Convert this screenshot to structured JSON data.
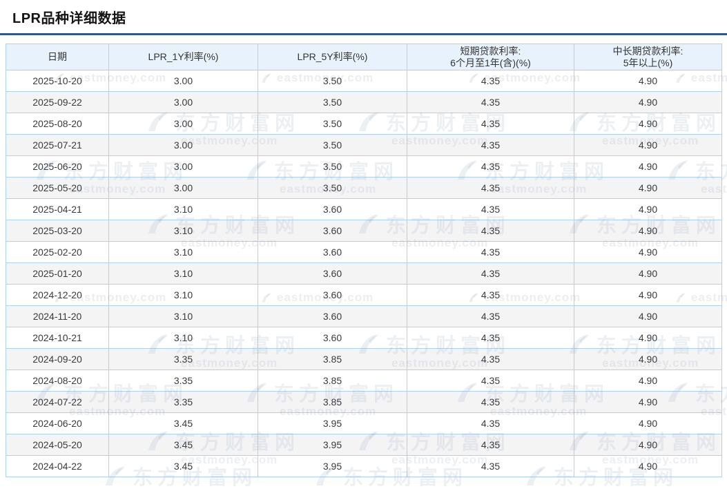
{
  "page": {
    "title": "LPR品种详细数据"
  },
  "table": {
    "headers": [
      "日期",
      "LPR_1Y利率(%)",
      "LPR_5Y利率(%)",
      "短期贷款利率:\n6个月至1年(含)(%)",
      "中长期贷款利率:\n5年以上(%)"
    ],
    "rows": [
      [
        "2025-10-20",
        "3.00",
        "3.50",
        "4.35",
        "4.90"
      ],
      [
        "2025-09-22",
        "3.00",
        "3.50",
        "4.35",
        "4.90"
      ],
      [
        "2025-08-20",
        "3.00",
        "3.50",
        "4.35",
        "4.90"
      ],
      [
        "2025-07-21",
        "3.00",
        "3.50",
        "4.35",
        "4.90"
      ],
      [
        "2025-06-20",
        "3.00",
        "3.50",
        "4.35",
        "4.90"
      ],
      [
        "2025-05-20",
        "3.00",
        "3.50",
        "4.35",
        "4.90"
      ],
      [
        "2025-04-21",
        "3.10",
        "3.60",
        "4.35",
        "4.90"
      ],
      [
        "2025-03-20",
        "3.10",
        "3.60",
        "4.35",
        "4.90"
      ],
      [
        "2025-02-20",
        "3.10",
        "3.60",
        "4.35",
        "4.90"
      ],
      [
        "2025-01-20",
        "3.10",
        "3.60",
        "4.35",
        "4.90"
      ],
      [
        "2024-12-20",
        "3.10",
        "3.60",
        "4.35",
        "4.90"
      ],
      [
        "2024-11-20",
        "3.10",
        "3.60",
        "4.35",
        "4.90"
      ],
      [
        "2024-10-21",
        "3.10",
        "3.60",
        "4.35",
        "4.90"
      ],
      [
        "2024-09-20",
        "3.35",
        "3.85",
        "4.35",
        "4.90"
      ],
      [
        "2024-08-20",
        "3.35",
        "3.85",
        "4.35",
        "4.90"
      ],
      [
        "2024-07-22",
        "3.35",
        "3.85",
        "4.35",
        "4.90"
      ],
      [
        "2024-06-20",
        "3.45",
        "3.95",
        "4.35",
        "4.90"
      ],
      [
        "2024-05-20",
        "3.45",
        "3.95",
        "4.35",
        "4.90"
      ],
      [
        "2024-04-22",
        "3.45",
        "3.95",
        "4.35",
        "4.90"
      ]
    ]
  },
  "watermark": {
    "site_name": "东方财富网",
    "domain": "eastmoney.com"
  },
  "colors": {
    "divider": "#2e578c",
    "header_bg": "#e8f2fc",
    "border": "#aed2ee",
    "stripe": "#f4f4f5"
  }
}
